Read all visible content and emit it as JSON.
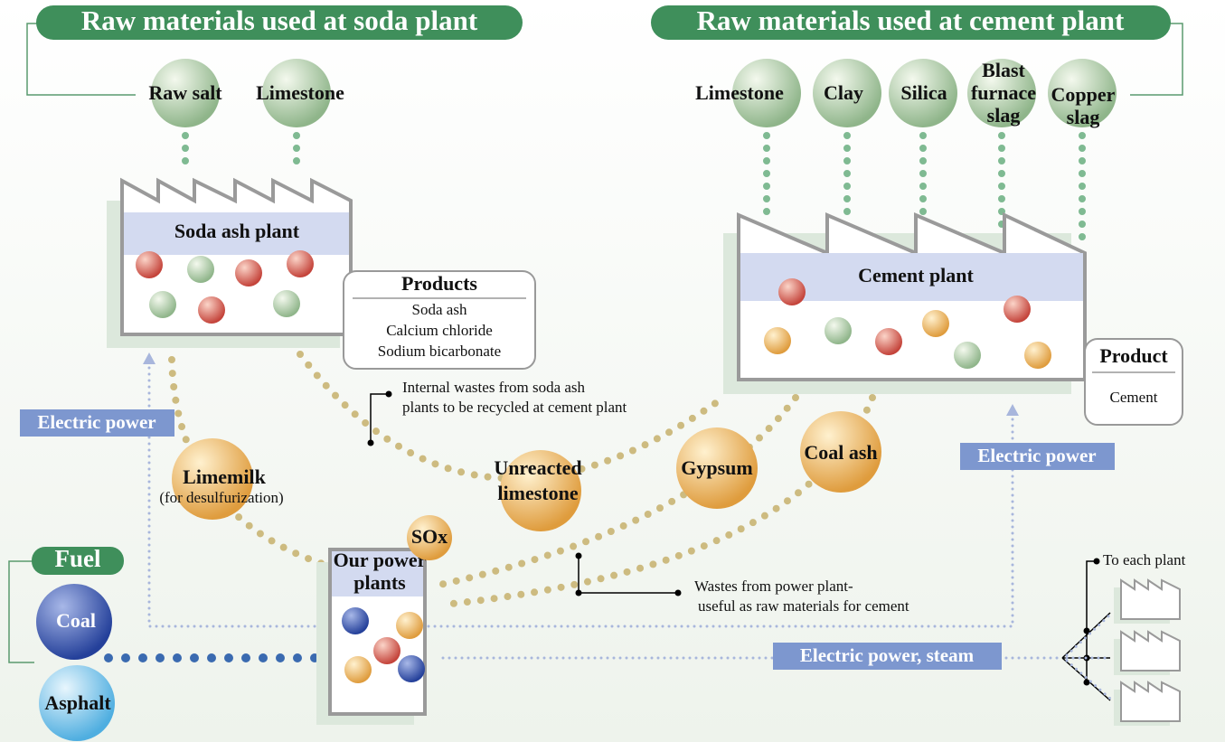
{
  "soda_header": "Raw materials used at soda plant",
  "cement_header": "Raw materials used at cement plant",
  "fuel_header": "Fuel",
  "soda_materials": [
    "Raw salt",
    "Limestone"
  ],
  "cement_materials": [
    [
      "Limestone"
    ],
    [
      "Clay"
    ],
    [
      "Silica"
    ],
    [
      "Blast",
      "furnace",
      "slag"
    ],
    [
      "Copper",
      "slag"
    ]
  ],
  "soda_plant": {
    "label": "Soda ash plant",
    "products_title": "Products",
    "products": [
      "Soda ash",
      "Calcium chloride",
      "Sodium bicarbonate"
    ]
  },
  "cement_plant": {
    "label": "Cement plant",
    "product_title": "Product",
    "product": "Cement"
  },
  "power_plant": [
    "Our power",
    "plants"
  ],
  "flows": {
    "limemilk": "Limemilk",
    "limemilk_note": "(for desulfurization)",
    "unreacted": [
      "Unreacted",
      "limestone"
    ],
    "gypsum": "Gypsum",
    "coal_ash": "Coal ash",
    "sox": "SOx"
  },
  "fuels": [
    "Coal",
    "Asphalt"
  ],
  "electric_labels": [
    "Electric power",
    "Electric power",
    "Electric power, steam"
  ],
  "annotations": {
    "internal": [
      "Internal wastes from soda ash",
      "plants to be recycled at cement plant"
    ],
    "power": [
      "Wastes from power plant-",
      "useful as raw materials for cement"
    ],
    "to_each": "To each plant"
  }
}
